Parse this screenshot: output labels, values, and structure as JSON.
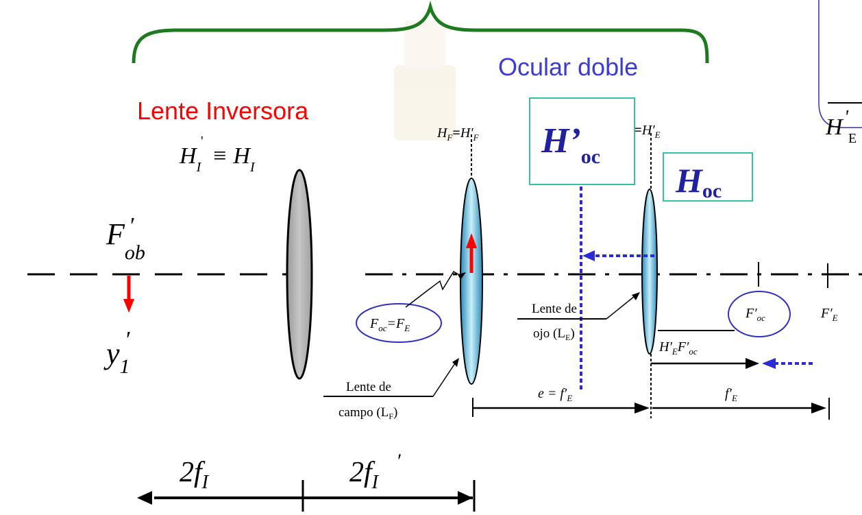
{
  "diagram": {
    "labels": {
      "ocular_doble": "Ocular doble",
      "lente_inversora": "Lente Inversora",
      "lente_campo_line1": "Lente de",
      "lente_campo_line2": "campo (L",
      "lente_campo_sub": "F",
      "lente_campo_close": ")",
      "lente_ojo_line1": "Lente de",
      "lente_ojo_line2": "ojo (L",
      "lente_ojo_sub": "E",
      "lente_ojo_close": ")"
    },
    "symbols": {
      "H_I_equiv": "H",
      "H_I_sub": "I",
      "equiv_sign": "≡",
      "F_ob": "F",
      "F_ob_prime": "′",
      "F_ob_sub": "ob",
      "y1": "y",
      "y1_prime": "′",
      "y1_sub": "1",
      "HF_eq": "H",
      "HF_sub": "F",
      "HF_eq_sign": "=",
      "HFp": "H′",
      "HFp_sub": "F",
      "HE": "H",
      "HE_sub": "E",
      "HE_eq_sign": "=",
      "HEp": "H′",
      "HEp_sub": "E",
      "H_oc_prime": "H’",
      "H_oc_prime_sub": "oc",
      "H_oc": "H",
      "H_oc_sub": "oc",
      "Foc_eq_FE": "F",
      "Foc_sub": "oc",
      "Foc_eq_sign": "=F",
      "FE_sub": "E",
      "Fpoc": "F′",
      "Fpoc_sub": "oc",
      "FpE": "F′",
      "FpE_sub": "E",
      "e_eq_fE": "e = f′",
      "e_eq_fE_sub": "E",
      "HpE_Fpoc": "H′",
      "HpE_Fpoc_sub1": "E",
      "HpE_Fpoc_mid": "F′",
      "HpE_Fpoc_sub2": "oc",
      "fpE": "f′",
      "fpE_sub": "E",
      "two_fI": "2f",
      "two_fI_sub": "I",
      "two_fIp": "2f",
      "two_fIp_prime": "′",
      "two_fIp_sub": "I",
      "corner_H": "H",
      "corner_H_prime": "'",
      "corner_H_sub": "E"
    },
    "colors": {
      "green_brace": "#1e7a1e",
      "blue_text": "#3b3bd6",
      "red_text": "#ff0000",
      "teal_box": "#33c2a8",
      "lens_gray": "#b4b4b4",
      "lens_blue": "#58c4e4",
      "dotted_blue": "#2a2ad6",
      "ellipse_blue": "#3030c0",
      "black": "#000000"
    }
  }
}
